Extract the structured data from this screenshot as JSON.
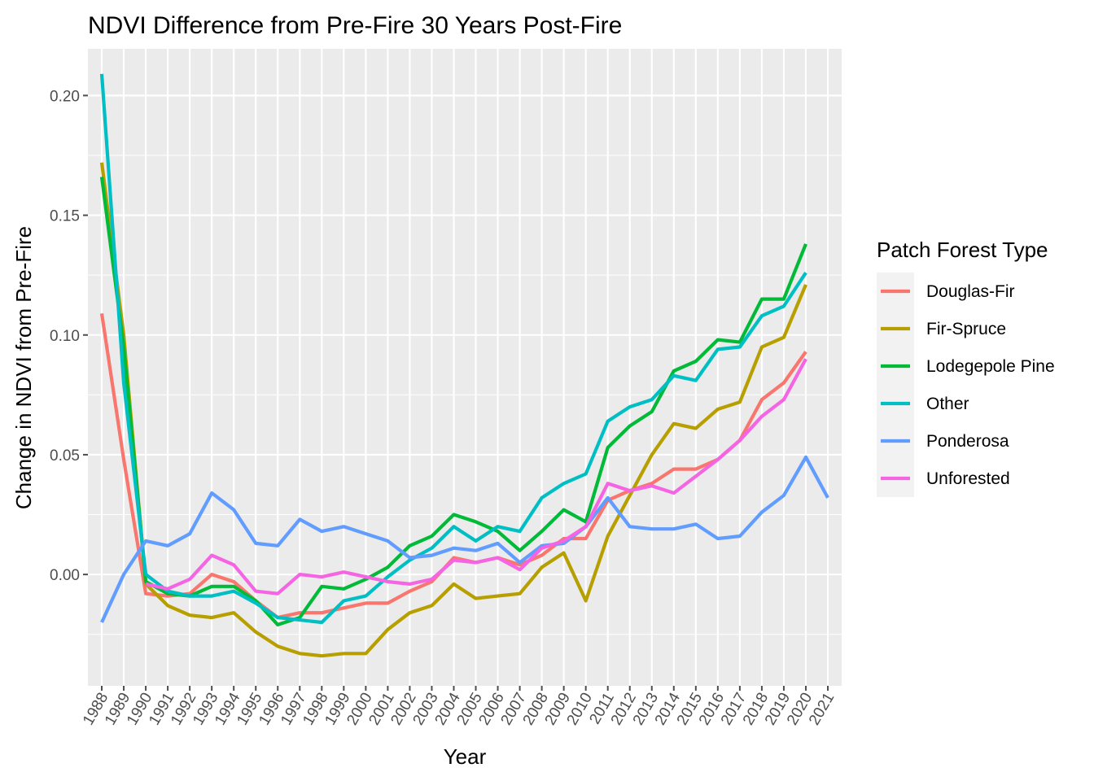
{
  "chart_data": {
    "type": "line",
    "title": "NDVI Difference from Pre-Fire 30 Years Post-Fire",
    "xlabel": "Year",
    "ylabel": "Change in NDVI from Pre-Fire",
    "ylim": [
      -0.0465,
      0.2195
    ],
    "y_ticks": [
      0.0,
      0.05,
      0.1,
      0.15,
      0.2
    ],
    "y_tick_labels": [
      "0.00",
      "0.05",
      "0.10",
      "0.15",
      "0.20"
    ],
    "grid": true,
    "legend_position": "right",
    "legend_title": "Patch Forest Type",
    "x": [
      1988,
      1989,
      1990,
      1991,
      1992,
      1993,
      1994,
      1995,
      1996,
      1997,
      1998,
      1999,
      2000,
      2001,
      2002,
      2003,
      2004,
      2005,
      2006,
      2007,
      2008,
      2009,
      2010,
      2011,
      2012,
      2013,
      2014,
      2015,
      2016,
      2017,
      2018,
      2019,
      2020,
      2021
    ],
    "series": [
      {
        "name": "Douglas-Fir",
        "color": "#F8766D",
        "values": [
          0.109,
          0.048,
          -0.008,
          -0.009,
          -0.008,
          0.0,
          -0.003,
          -0.011,
          -0.018,
          -0.016,
          -0.016,
          -0.014,
          -0.012,
          -0.012,
          -0.007,
          -0.003,
          0.007,
          0.005,
          0.007,
          0.004,
          0.008,
          0.015,
          0.015,
          0.031,
          0.035,
          0.038,
          0.044,
          0.044,
          0.048,
          0.056,
          0.073,
          0.08,
          0.093,
          null
        ]
      },
      {
        "name": "Fir-Spruce",
        "color": "#B79F00",
        "values": [
          0.172,
          0.1,
          -0.004,
          -0.013,
          -0.017,
          -0.018,
          -0.016,
          -0.024,
          -0.03,
          -0.033,
          -0.034,
          -0.033,
          -0.033,
          -0.023,
          -0.016,
          -0.013,
          -0.004,
          -0.01,
          -0.009,
          -0.008,
          0.003,
          0.009,
          -0.011,
          0.016,
          0.033,
          0.05,
          0.063,
          0.061,
          0.069,
          0.072,
          0.095,
          0.099,
          0.121,
          null
        ]
      },
      {
        "name": "Lodegepole Pine",
        "color": "#00BA38",
        "values": [
          0.166,
          0.095,
          -0.003,
          -0.008,
          -0.009,
          -0.005,
          -0.005,
          -0.011,
          -0.021,
          -0.018,
          -0.005,
          -0.006,
          -0.002,
          0.003,
          0.012,
          0.016,
          0.025,
          0.022,
          0.018,
          0.01,
          0.018,
          0.027,
          0.022,
          0.053,
          0.062,
          0.068,
          0.085,
          0.089,
          0.098,
          0.097,
          0.115,
          0.115,
          0.138,
          null
        ]
      },
      {
        "name": "Other",
        "color": "#00BFC4",
        "values": [
          0.209,
          0.08,
          0.0,
          -0.007,
          -0.009,
          -0.009,
          -0.007,
          -0.012,
          -0.018,
          -0.019,
          -0.02,
          -0.011,
          -0.009,
          -0.001,
          0.006,
          0.011,
          0.02,
          0.014,
          0.02,
          0.018,
          0.032,
          0.038,
          0.042,
          0.064,
          0.07,
          0.073,
          0.083,
          0.081,
          0.094,
          0.095,
          0.108,
          0.112,
          0.126,
          null
        ]
      },
      {
        "name": "Ponderosa",
        "color": "#619CFF",
        "values": [
          -0.02,
          0.0,
          0.014,
          0.012,
          0.017,
          0.034,
          0.027,
          0.013,
          0.012,
          0.023,
          0.018,
          0.02,
          0.017,
          0.014,
          0.007,
          0.008,
          0.011,
          0.01,
          0.013,
          0.005,
          0.012,
          0.013,
          0.02,
          0.032,
          0.02,
          0.019,
          0.019,
          0.021,
          0.015,
          0.016,
          0.026,
          0.033,
          0.049,
          0.032
        ]
      },
      {
        "name": "Unforested",
        "color": "#F564E3",
        "values": [
          null,
          null,
          -0.004,
          -0.006,
          -0.002,
          0.008,
          0.004,
          -0.007,
          -0.008,
          0.0,
          -0.001,
          0.001,
          -0.001,
          -0.003,
          -0.004,
          -0.002,
          0.006,
          0.005,
          0.007,
          0.002,
          0.011,
          0.014,
          0.02,
          0.038,
          0.035,
          0.037,
          0.034,
          0.041,
          0.048,
          0.056,
          0.066,
          0.073,
          0.09,
          null
        ]
      }
    ]
  }
}
